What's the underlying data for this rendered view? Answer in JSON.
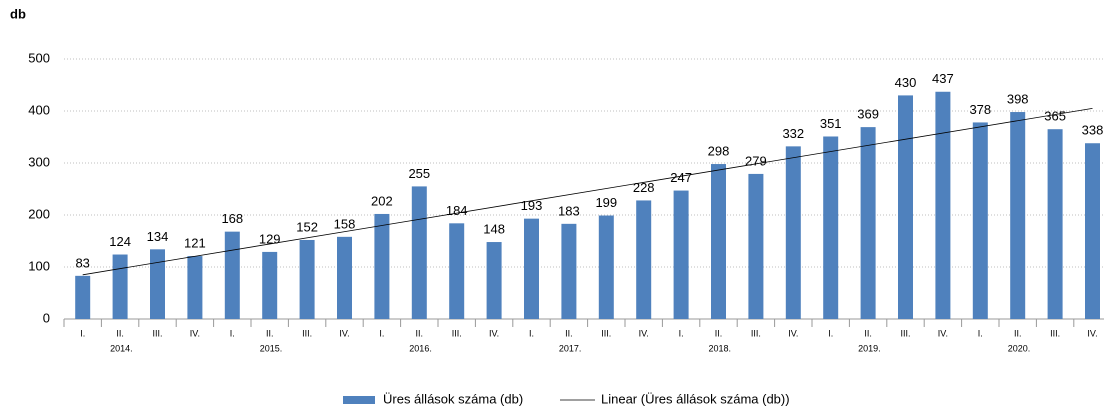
{
  "chart_data": {
    "type": "bar",
    "y_label": "db",
    "categories": [
      "I.",
      "II.",
      "III.",
      "IV.",
      "I.",
      "II.",
      "III.",
      "IV.",
      "I.",
      "II.",
      "III.",
      "IV.",
      "I.",
      "II.",
      "III.",
      "IV.",
      "I.",
      "II.",
      "III.",
      "IV.",
      "I.",
      "II.",
      "III.",
      "IV.",
      "I.",
      "II.",
      "III.",
      "IV."
    ],
    "years": [
      "2014.",
      "2015.",
      "2016.",
      "2017.",
      "2018.",
      "2019.",
      "2020."
    ],
    "series": [
      {
        "name": "Üres állások száma (db)",
        "color": "#4f81bd",
        "values": [
          83,
          124,
          134,
          121,
          168,
          129,
          152,
          158,
          202,
          255,
          184,
          148,
          193,
          183,
          199,
          228,
          247,
          298,
          279,
          332,
          351,
          369,
          430,
          437,
          378,
          398,
          365,
          338
        ]
      }
    ],
    "trend": {
      "name": "Linear (Üres állások száma (db))",
      "color": "#000000",
      "values": [
        85,
        405
      ]
    },
    "ylim": [
      0,
      500
    ],
    "yticks": [
      0,
      100,
      200,
      300,
      400,
      500
    ],
    "grid": true
  }
}
